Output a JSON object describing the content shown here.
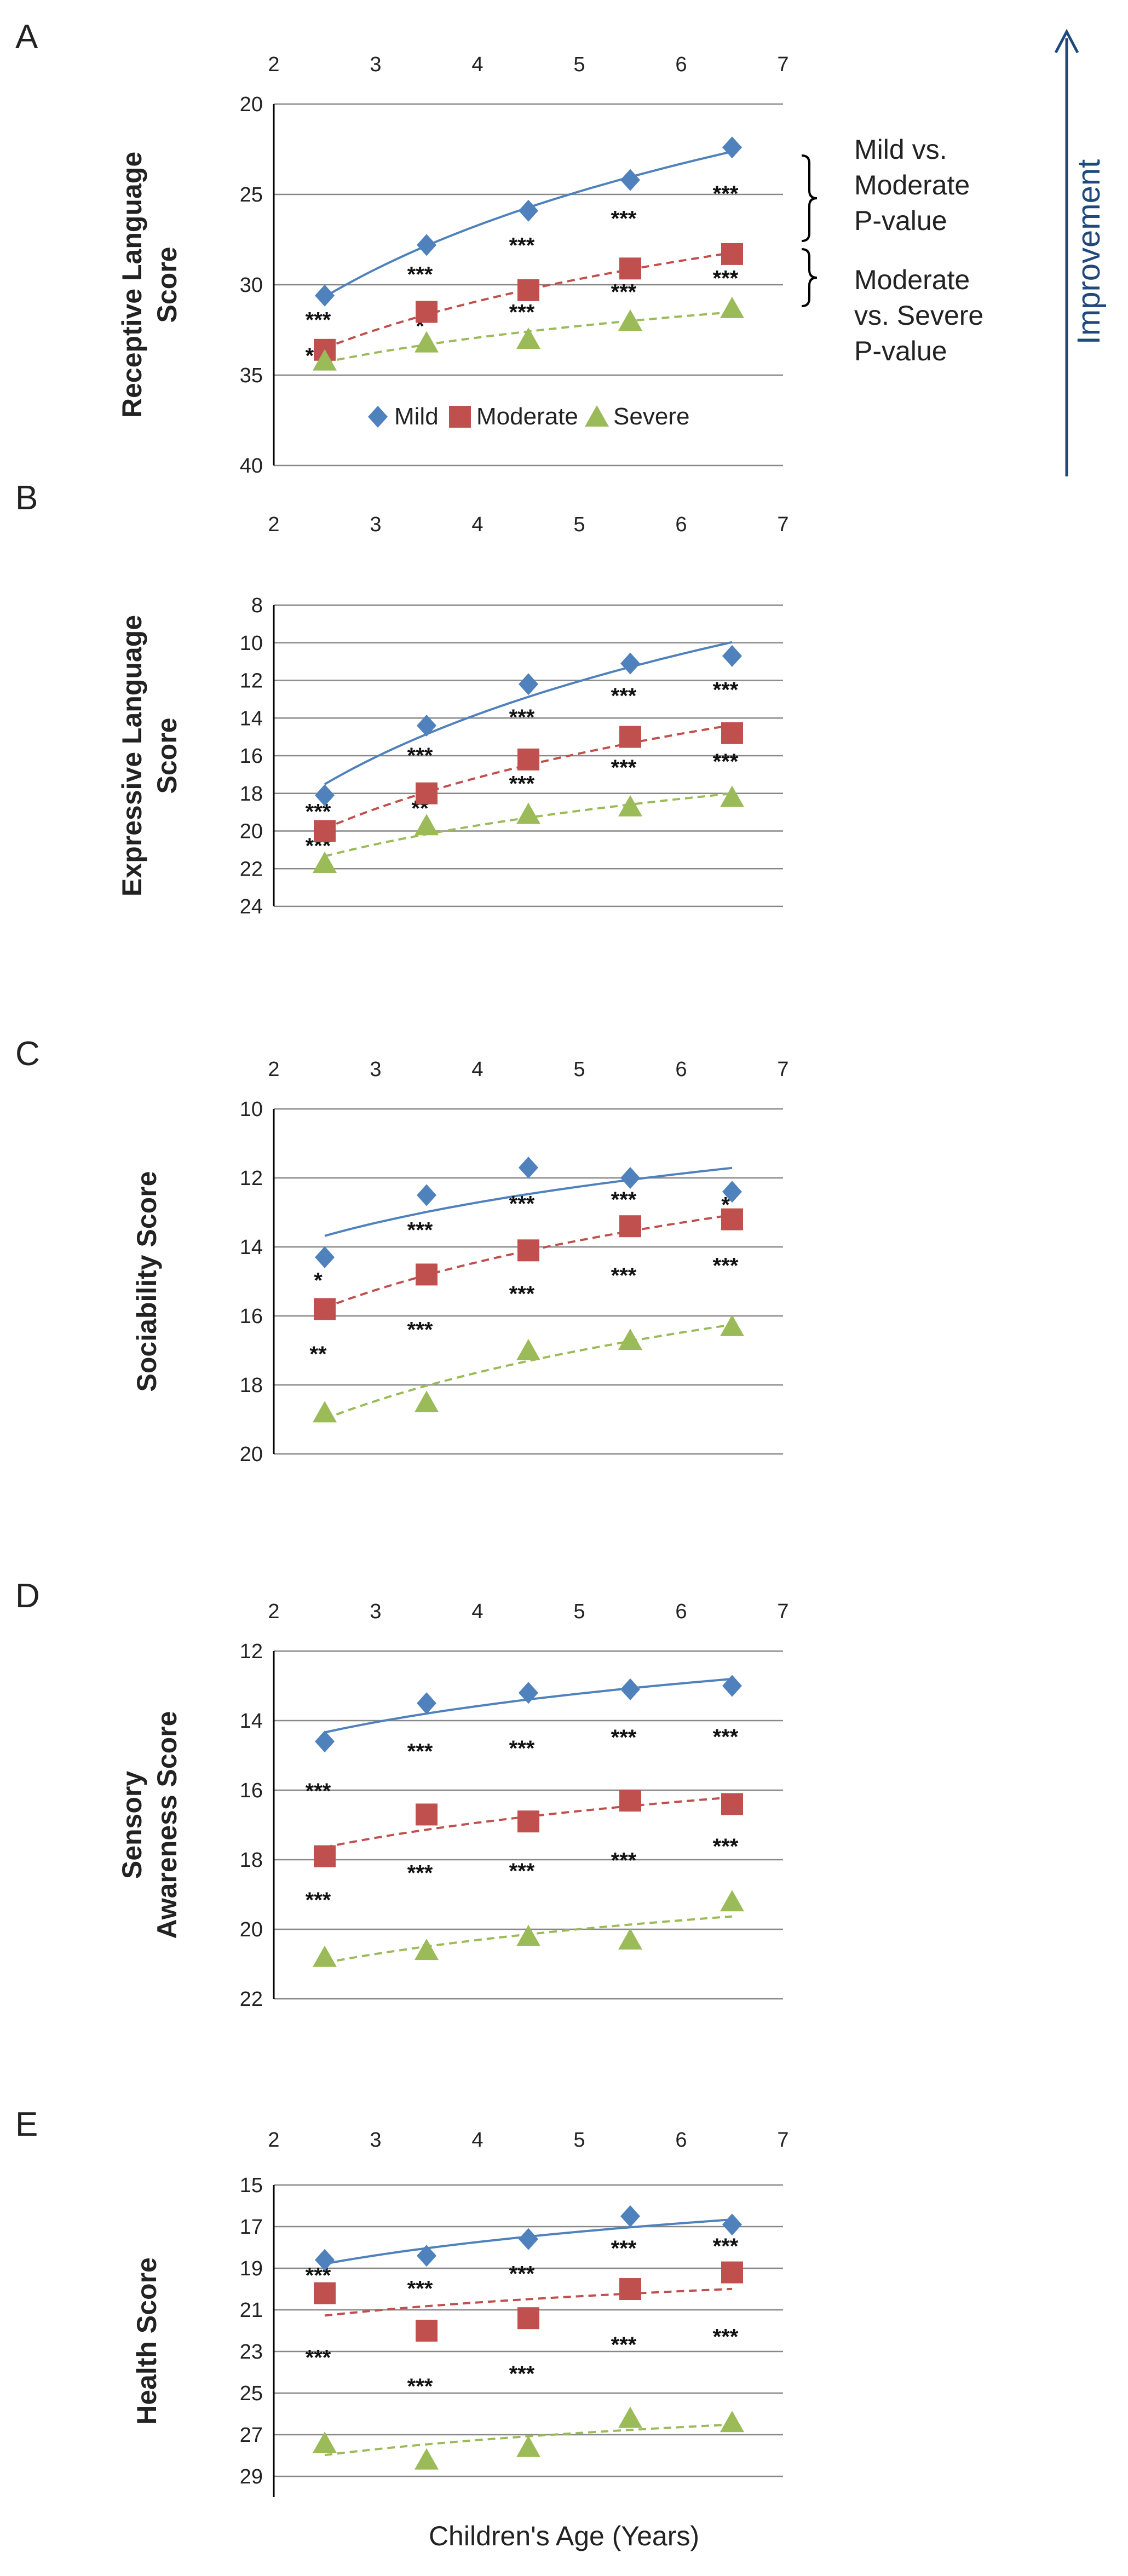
{
  "chart_data": [
    {
      "type": "scatter",
      "panel": "A",
      "ylabel_lines": [
        "Receptive Language",
        "Score"
      ],
      "x_ticks": [
        2,
        3,
        4,
        5,
        6,
        7
      ],
      "y_ticks": [
        20,
        25,
        30,
        35,
        40
      ],
      "ylim": [
        20,
        40
      ],
      "y_inverted": true,
      "x": [
        2.5,
        3.5,
        4.5,
        5.5,
        6.5
      ],
      "series": [
        {
          "name": "Mild",
          "values": [
            30.6,
            27.8,
            25.9,
            24.2,
            22.4
          ],
          "color": "#4f81bd",
          "marker": "diamond",
          "trend": "solid"
        },
        {
          "name": "Moderate",
          "values": [
            33.6,
            31.5,
            30.3,
            29.1,
            28.3
          ],
          "color": "#c0504d",
          "marker": "square",
          "trend": "dashed"
        },
        {
          "name": "Severe",
          "values": [
            34.2,
            33.2,
            33.0,
            32.0,
            31.3
          ],
          "color": "#9bbb59",
          "marker": "triangle",
          "trend": "dashed"
        }
      ],
      "significance_mild_moderate": [
        "***",
        "***",
        "***",
        "***",
        "***"
      ],
      "significance_moderate_severe": [
        "***",
        "*",
        "***",
        "***",
        "***"
      ],
      "legend": [
        "Mild",
        "Moderate",
        "Severe"
      ],
      "annotations": {
        "mild_vs_moderate": [
          "Mild vs.",
          "Moderate",
          "P-value"
        ],
        "moderate_vs_severe": [
          "Moderate",
          "vs. Severe",
          "P-value"
        ]
      }
    },
    {
      "type": "scatter",
      "panel": "B",
      "ylabel_lines": [
        "Expressive Language",
        "Score"
      ],
      "x_ticks": [
        2,
        3,
        4,
        5,
        6,
        7
      ],
      "y_ticks": [
        8,
        10,
        12,
        14,
        16,
        18,
        20,
        22,
        24
      ],
      "ylim": [
        8,
        24
      ],
      "y_inverted": true,
      "x": [
        2.5,
        3.5,
        4.5,
        5.5,
        6.5
      ],
      "series": [
        {
          "name": "Mild",
          "values": [
            18.1,
            14.4,
            12.2,
            11.1,
            10.7
          ],
          "color": "#4f81bd",
          "marker": "diamond",
          "trend": "solid"
        },
        {
          "name": "Moderate",
          "values": [
            20.0,
            18.0,
            16.2,
            15.0,
            14.8
          ],
          "color": "#c0504d",
          "marker": "square",
          "trend": "dashed"
        },
        {
          "name": "Severe",
          "values": [
            21.7,
            19.7,
            19.1,
            18.7,
            18.2
          ],
          "color": "#9bbb59",
          "marker": "triangle",
          "trend": "dashed"
        }
      ],
      "significance_mild_moderate": [
        "***",
        "***",
        "***",
        "***",
        "***"
      ],
      "significance_moderate_severe": [
        "***",
        "**",
        "***",
        "***",
        "***"
      ]
    },
    {
      "type": "scatter",
      "panel": "C",
      "ylabel_lines": [
        "Sociability Score"
      ],
      "x_ticks": [
        2,
        3,
        4,
        5,
        6,
        7
      ],
      "y_ticks": [
        10,
        12,
        14,
        16,
        18,
        20
      ],
      "ylim": [
        10,
        20
      ],
      "y_inverted": true,
      "x": [
        2.5,
        3.5,
        4.5,
        5.5,
        6.5
      ],
      "series": [
        {
          "name": "Mild",
          "values": [
            14.3,
            12.5,
            11.7,
            12.0,
            12.4
          ],
          "color": "#4f81bd",
          "marker": "diamond",
          "trend": "solid"
        },
        {
          "name": "Moderate",
          "values": [
            15.8,
            14.8,
            14.1,
            13.4,
            13.2
          ],
          "color": "#c0504d",
          "marker": "square",
          "trend": "dashed"
        },
        {
          "name": "Severe",
          "values": [
            18.8,
            18.5,
            17.0,
            16.7,
            16.3
          ],
          "color": "#9bbb59",
          "marker": "triangle",
          "trend": "dashed"
        }
      ],
      "significance_mild_moderate": [
        "*",
        "***",
        "***",
        "***",
        "*"
      ],
      "significance_moderate_severe": [
        "**",
        "***",
        "***",
        "***",
        "***"
      ]
    },
    {
      "type": "scatter",
      "panel": "D",
      "ylabel_lines": [
        "Sensory",
        "Awareness Score"
      ],
      "x_ticks": [
        2,
        3,
        4,
        5,
        6,
        7
      ],
      "y_ticks": [
        12,
        14,
        16,
        18,
        20,
        22
      ],
      "ylim": [
        12,
        22
      ],
      "y_inverted": true,
      "x": [
        2.5,
        3.5,
        4.5,
        5.5,
        6.5
      ],
      "series": [
        {
          "name": "Mild",
          "values": [
            14.6,
            13.5,
            13.2,
            13.1,
            13.0
          ],
          "color": "#4f81bd",
          "marker": "diamond",
          "trend": "solid"
        },
        {
          "name": "Moderate",
          "values": [
            17.9,
            16.7,
            16.9,
            16.3,
            16.4
          ],
          "color": "#c0504d",
          "marker": "square",
          "trend": "dashed"
        },
        {
          "name": "Severe",
          "values": [
            20.8,
            20.6,
            20.2,
            20.3,
            19.2
          ],
          "color": "#9bbb59",
          "marker": "triangle",
          "trend": "dashed"
        }
      ],
      "significance_mild_moderate": [
        "***",
        "***",
        "***",
        "***",
        "***"
      ],
      "significance_moderate_severe": [
        "***",
        "***",
        "***",
        "***",
        "***"
      ]
    },
    {
      "type": "scatter",
      "panel": "E",
      "ylabel_lines": [
        "Health Score"
      ],
      "x_ticks": [
        2,
        3,
        4,
        5,
        6,
        7
      ],
      "y_ticks": [
        15,
        17,
        19,
        21,
        23,
        25,
        27,
        29
      ],
      "ylim": [
        15,
        30
      ],
      "y_inverted": true,
      "x": [
        2.5,
        3.5,
        4.5,
        5.5,
        6.5
      ],
      "series": [
        {
          "name": "Mild",
          "values": [
            18.6,
            18.4,
            17.6,
            16.5,
            16.9
          ],
          "color": "#4f81bd",
          "marker": "diamond",
          "trend": "solid"
        },
        {
          "name": "Moderate",
          "values": [
            20.2,
            22.0,
            21.4,
            20.0,
            19.2
          ],
          "color": "#c0504d",
          "marker": "square",
          "trend": "dashed"
        },
        {
          "name": "Severe",
          "values": [
            27.4,
            28.2,
            27.6,
            26.2,
            26.4
          ],
          "color": "#9bbb59",
          "marker": "triangle",
          "trend": "dashed"
        }
      ],
      "significance_mild_moderate": [
        "***",
        "***",
        "***",
        "***",
        "***"
      ],
      "significance_moderate_severe": [
        "***",
        "***",
        "***",
        "***",
        "***"
      ]
    }
  ],
  "xlabel": "Children's Age (Years)",
  "improvement_label": "Improvement",
  "colors": {
    "axis": "#000000",
    "grid": "#888888",
    "arrow": "#1f497d"
  }
}
